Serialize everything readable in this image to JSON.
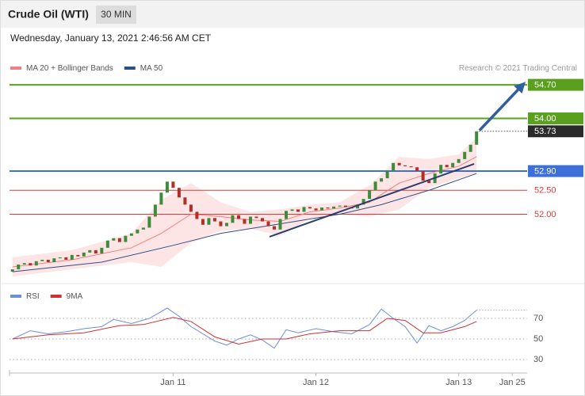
{
  "header": {
    "title": "Crude Oil (WTI)",
    "interval": "30 MIN",
    "timestamp": "Wednesday, January 13, 2021 2:46:56 AM CET"
  },
  "chart_data": [
    {
      "type": "candlestick",
      "credit": "Research © 2021 Trading Central",
      "xlim": [
        -0.5,
        86.5
      ],
      "ylim": [
        50.57,
        54.9
      ],
      "up_color": "#3c8c3c",
      "down_color": "#b03028",
      "open": [
        50.8,
        50.85,
        50.95,
        50.98,
        50.93,
        51.02,
        51.05,
        51.0,
        51.08,
        51.1,
        51.05,
        51.15,
        51.12,
        51.2,
        51.25,
        51.18,
        51.3,
        51.45,
        51.5,
        51.42,
        51.55,
        51.6,
        51.68,
        51.72,
        51.95,
        52.2,
        52.45,
        52.68,
        52.55,
        52.35,
        52.2,
        52.05,
        51.9,
        51.78,
        51.92,
        51.85,
        51.75,
        51.82,
        51.98,
        51.9,
        51.8,
        51.95,
        51.92,
        51.85,
        51.75,
        51.68,
        51.9,
        52.07,
        52.1,
        52.05,
        52.15,
        52.12,
        52.08,
        52.14,
        52.12,
        52.16,
        52.18,
        52.15,
        52.12,
        52.2,
        52.32,
        52.5,
        52.68,
        52.75,
        52.9,
        53.07,
        53.02,
        53.0,
        52.98,
        52.9,
        52.7,
        52.65,
        52.85,
        53.03,
        52.98,
        53.07,
        53.15,
        53.3,
        53.45
      ],
      "close": [
        50.85,
        50.95,
        50.98,
        50.93,
        51.02,
        51.05,
        51.0,
        51.08,
        51.1,
        51.05,
        51.15,
        51.12,
        51.2,
        51.25,
        51.18,
        51.3,
        51.45,
        51.5,
        51.42,
        51.55,
        51.6,
        51.68,
        51.72,
        51.95,
        52.2,
        52.45,
        52.68,
        52.55,
        52.35,
        52.2,
        52.05,
        51.9,
        51.78,
        51.92,
        51.85,
        51.75,
        51.82,
        51.98,
        51.9,
        51.8,
        51.95,
        51.92,
        51.85,
        51.75,
        51.68,
        51.9,
        52.07,
        52.1,
        52.05,
        52.15,
        52.12,
        52.08,
        52.14,
        52.12,
        52.16,
        52.18,
        52.15,
        52.12,
        52.2,
        52.32,
        52.5,
        52.68,
        52.75,
        52.9,
        53.07,
        53.02,
        53.0,
        52.98,
        52.9,
        52.7,
        52.65,
        52.85,
        53.03,
        52.98,
        53.07,
        53.15,
        53.3,
        53.45,
        53.73
      ],
      "series": [
        {
          "name": "MA 20 + Bollinger Bands",
          "color": "#f08080",
          "band_color": "#fde0e0",
          "x": [
            0,
            10,
            20,
            25,
            30,
            35,
            40,
            45,
            50,
            55,
            60,
            65,
            70,
            75,
            78
          ],
          "values": [
            50.9,
            51.05,
            51.3,
            51.6,
            52.0,
            51.95,
            51.88,
            51.85,
            52.05,
            52.13,
            52.25,
            52.65,
            52.85,
            53.0,
            53.2
          ],
          "upper": [
            51.1,
            51.25,
            51.6,
            52.3,
            52.65,
            52.25,
            52.05,
            52.1,
            52.2,
            52.25,
            52.6,
            53.2,
            53.15,
            53.25,
            53.6
          ],
          "lower": [
            50.7,
            50.85,
            51.0,
            50.9,
            51.4,
            51.65,
            51.7,
            51.55,
            51.9,
            52.0,
            51.95,
            52.1,
            52.55,
            52.75,
            52.85
          ]
        },
        {
          "name": "MA 50",
          "color": "#2c4f8a",
          "x": [
            0,
            15,
            27,
            35,
            45,
            55,
            62,
            70,
            78
          ],
          "values": [
            50.8,
            51.0,
            51.35,
            51.6,
            51.8,
            52.0,
            52.2,
            52.5,
            52.85
          ]
        }
      ],
      "levels": [
        {
          "value": 54.7,
          "label": "54.70",
          "color": "#5aa01e",
          "style": "box"
        },
        {
          "value": 54.0,
          "label": "54.00",
          "color": "#5aa01e",
          "style": "box"
        },
        {
          "value": 52.9,
          "label": "52.90",
          "color": "#3d6fd8",
          "style": "box"
        },
        {
          "value": 52.5,
          "label": "52.50",
          "color": "#d04040",
          "style": "text"
        },
        {
          "value": 52.0,
          "label": "52.00",
          "color": "#d04040",
          "style": "text"
        }
      ],
      "last": {
        "value": 53.73,
        "label": "53.73",
        "color": "#2a2a2a"
      },
      "trendline": {
        "x": [
          43.2,
          77.6
        ],
        "y": [
          51.53,
          53.05
        ],
        "color": "#2c3e70"
      },
      "arrow": {
        "x": [
          78.5,
          85.6
        ],
        "y": [
          53.75,
          54.68
        ],
        "color": "#2f5f9e"
      }
    },
    {
      "type": "line",
      "xlim": [
        -0.5,
        86.5
      ],
      "ylim": [
        21.5,
        98.5
      ],
      "yticks": [
        30,
        50,
        70
      ],
      "xticks": [
        {
          "value": 27,
          "label": "Jan 11"
        },
        {
          "value": 51,
          "label": "Jan 12"
        },
        {
          "value": 75,
          "label": "Jan 13"
        },
        {
          "value": 84,
          "label": "Jan 25"
        }
      ],
      "series": [
        {
          "name": "RSI",
          "color": "#6b8fd8",
          "x": [
            0,
            3,
            6,
            9,
            12,
            15,
            17,
            20,
            23,
            26,
            28,
            30,
            32,
            34,
            36,
            38,
            40,
            42,
            44,
            46,
            48,
            51,
            54,
            57,
            60,
            62,
            64,
            66,
            68,
            70,
            72,
            74,
            76,
            78
          ],
          "values": [
            50,
            58,
            55,
            57,
            60,
            62,
            69,
            65,
            70,
            80,
            72,
            62,
            55,
            48,
            44,
            50,
            54,
            49,
            41,
            59,
            56,
            60,
            57,
            55,
            64,
            79,
            70,
            62,
            46,
            63,
            58,
            62,
            68,
            78
          ]
        },
        {
          "name": "9MA",
          "color": "#d03030",
          "x": [
            0,
            6,
            12,
            18,
            22,
            27,
            30,
            34,
            38,
            42,
            46,
            50,
            55,
            60,
            63,
            66,
            69,
            72,
            76,
            78
          ],
          "values": [
            50,
            54,
            56,
            63,
            64,
            71,
            67,
            52,
            45,
            50,
            50,
            55,
            58,
            58,
            70,
            68,
            56,
            56,
            62,
            67
          ]
        }
      ]
    }
  ]
}
